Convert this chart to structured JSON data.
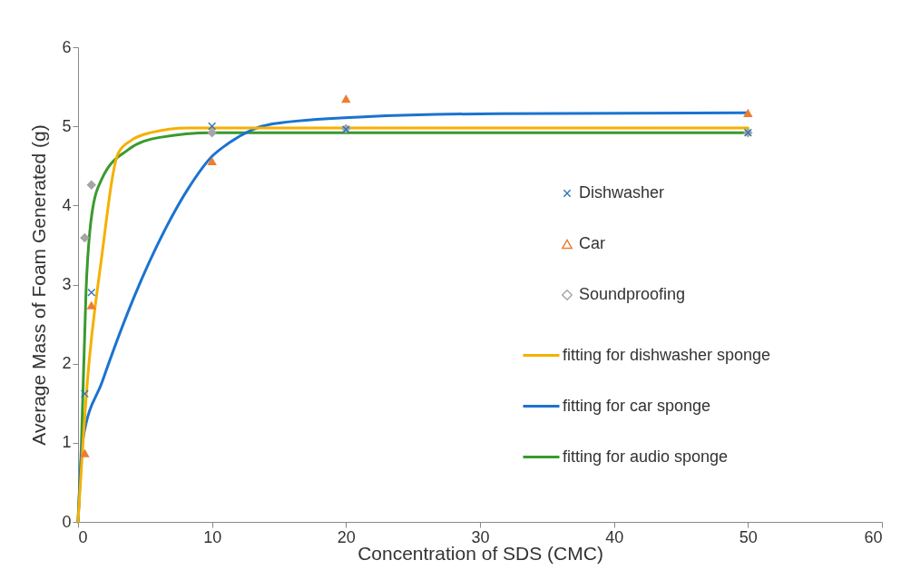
{
  "chart_data": {
    "type": "scatter",
    "xlabel": "Concentration of SDS (CMC)",
    "ylabel": "Average Mass of Foam Generated (g)",
    "xlim": [
      0,
      60
    ],
    "xticks": [
      0,
      10,
      20,
      30,
      40,
      50,
      60
    ],
    "ylim": [
      0,
      6
    ],
    "yticks": [
      0,
      1,
      2,
      3,
      4,
      5,
      6
    ],
    "grid": false,
    "legend": "right",
    "series": [
      {
        "name": "Dishwasher",
        "marker": "cross",
        "color": "#2e75b6",
        "x": [
          0.5,
          1,
          10,
          20,
          50
        ],
        "values": [
          1.62,
          2.9,
          5.0,
          4.96,
          4.92
        ]
      },
      {
        "name": "Car",
        "marker": "triangle",
        "color": "#ed7d31",
        "x": [
          0.5,
          1,
          10,
          20,
          50
        ],
        "values": [
          0.87,
          2.74,
          4.56,
          5.35,
          5.17
        ]
      },
      {
        "name": "Soundproofing",
        "marker": "diamond",
        "color": "#a5a5a5",
        "x": [
          0.5,
          1,
          10,
          20,
          50
        ],
        "values": [
          3.59,
          4.26,
          4.92,
          4.97,
          4.92
        ]
      },
      {
        "name": "fitting for dishwasher sponge",
        "type": "line",
        "marker": "none",
        "color": "#f5b000",
        "x": [
          0,
          0.67,
          1.75,
          3,
          3.95,
          5.4,
          8.25,
          10,
          20,
          50
        ],
        "values": [
          0,
          1.72,
          3.33,
          4.66,
          4.82,
          4.92,
          4.98,
          4.98,
          4.98,
          4.98
        ]
      },
      {
        "name": "fitting for car sponge",
        "type": "line",
        "marker": "none",
        "color": "#1a73d0",
        "x": [
          0,
          0.36,
          1.8,
          4.2,
          6.6,
          8.25,
          10,
          11.1,
          14.5,
          21.3,
          31.4,
          50
        ],
        "values": [
          0,
          1.04,
          1.77,
          2.85,
          3.73,
          4.22,
          4.62,
          4.77,
          5.03,
          5.12,
          5.16,
          5.17
        ]
      },
      {
        "name": "fitting for audio sponge",
        "type": "line",
        "marker": "none",
        "color": "#3a9a2e",
        "x": [
          0,
          0.24,
          0.6,
          1.03,
          1.79,
          3.7,
          6.1,
          10,
          20,
          50
        ],
        "values": [
          0,
          0.92,
          2.93,
          3.89,
          4.34,
          4.7,
          4.86,
          4.92,
          4.92,
          4.92
        ]
      }
    ]
  }
}
